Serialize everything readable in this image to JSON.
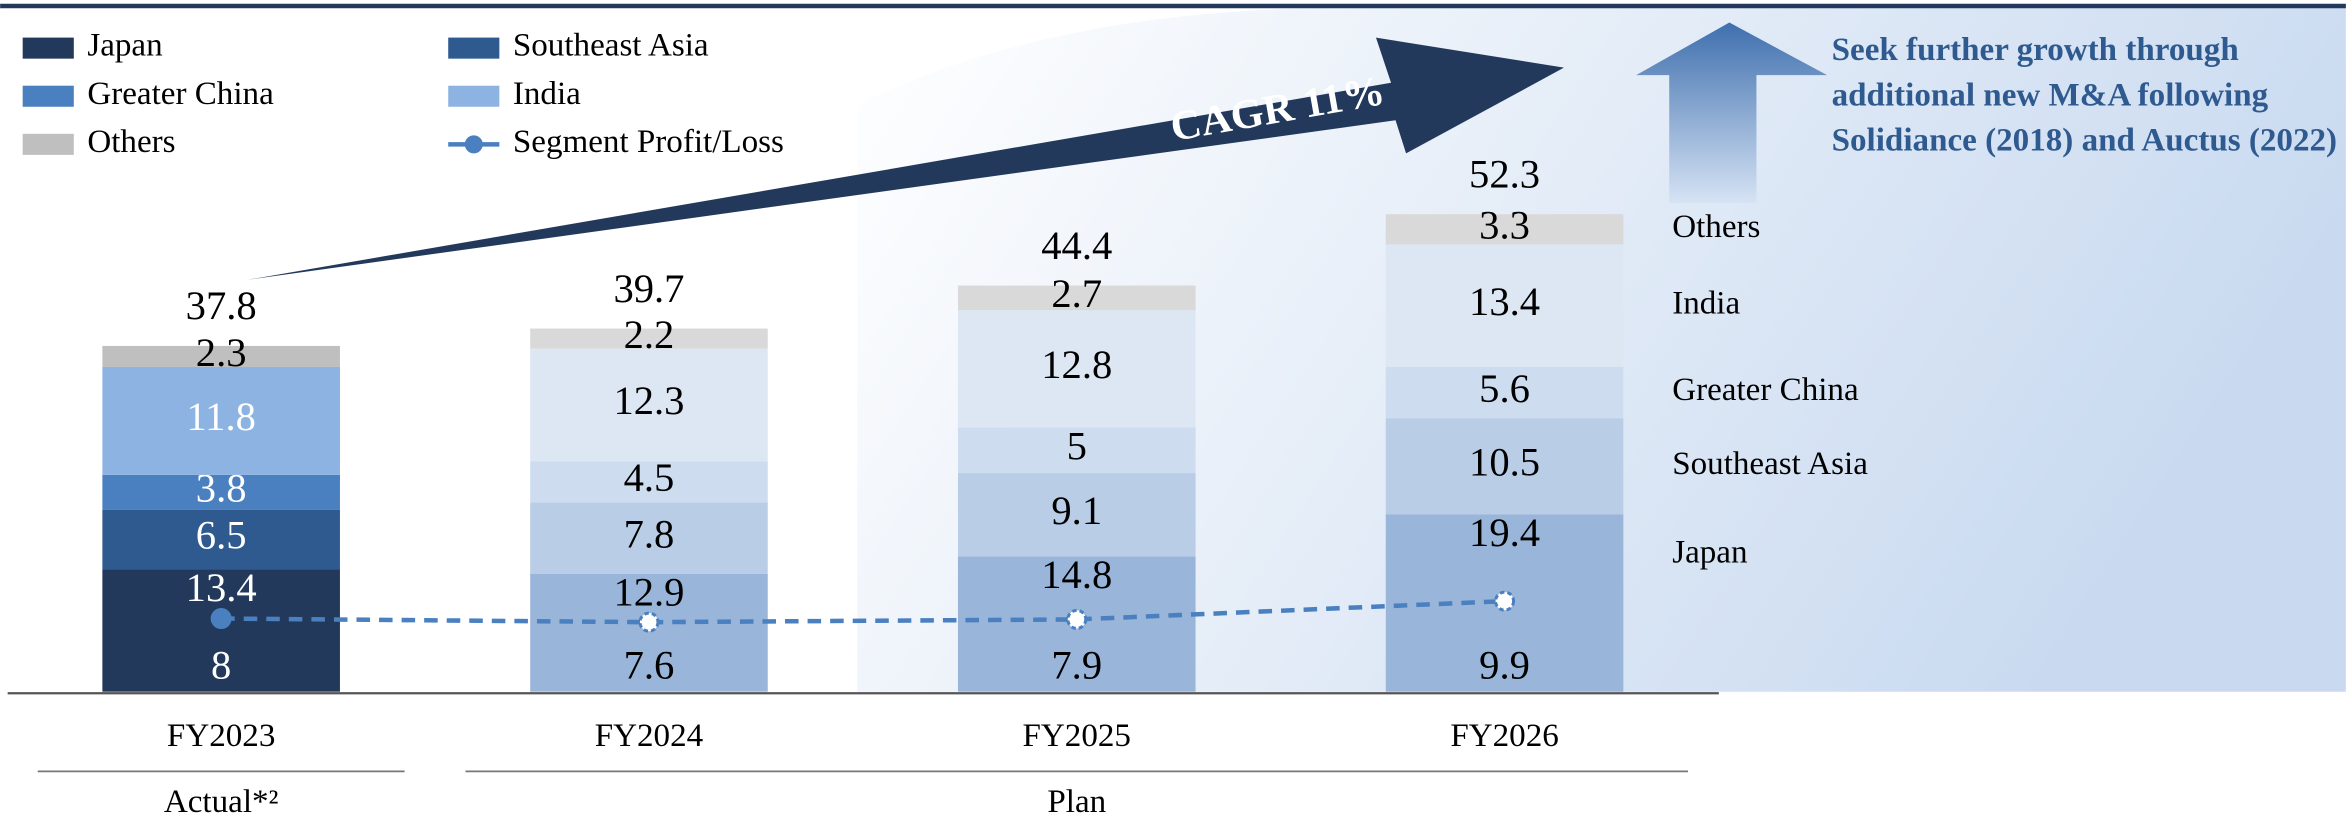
{
  "chart_data": {
    "type": "stacked_bar",
    "categories": [
      "FY2023",
      "FY2024",
      "FY2025",
      "FY2026"
    ],
    "groups": [
      {
        "label": "Actual*²",
        "span": [
          0,
          0
        ]
      },
      {
        "label": "Plan",
        "span": [
          1,
          3
        ]
      }
    ],
    "series": [
      {
        "name": "Japan",
        "color": "#23395b",
        "colors": [
          "#23395b",
          "#9ab5da",
          "#9ab5da",
          "#9ab5da"
        ],
        "values": [
          13.4,
          12.9,
          14.8,
          19.4
        ]
      },
      {
        "name": "Southeast Asia",
        "color": "#2f5a8f",
        "colors": [
          "#2f5a8f",
          "#b9cde6",
          "#b9cde6",
          "#b9cde6"
        ],
        "values": [
          6.5,
          7.8,
          9.1,
          10.5
        ]
      },
      {
        "name": "Greater China",
        "color": "#4a7fc0",
        "colors": [
          "#4a7fc0",
          "#cddcef",
          "#cddcef",
          "#cddcef"
        ],
        "values": [
          3.8,
          4.5,
          5.0,
          5.6
        ]
      },
      {
        "name": "India",
        "color": "#8db3e2",
        "colors": [
          "#8db3e2",
          "#dde7f3",
          "#dde7f3",
          "#dde7f3"
        ],
        "values": [
          11.8,
          12.3,
          12.8,
          13.4
        ]
      },
      {
        "name": "Others",
        "color": "#bfbfbf",
        "colors": [
          "#bfbfbf",
          "#d9d9d9",
          "#d9d9d9",
          "#d9d9d9"
        ],
        "values": [
          2.3,
          2.2,
          2.7,
          3.3
        ]
      }
    ],
    "totals": [
      37.8,
      39.7,
      44.4,
      52.3
    ],
    "profit": {
      "name": "Segment Profit/Loss",
      "color": "#4a7fc0",
      "values": [
        8.0,
        7.6,
        7.9,
        9.9
      ]
    },
    "ylim": [
      0,
      60
    ],
    "annotations": [
      "CAGR 11%",
      "Seek further growth through additional new M&A following Solidiance (2018) and Auctus (2022)"
    ]
  }
}
